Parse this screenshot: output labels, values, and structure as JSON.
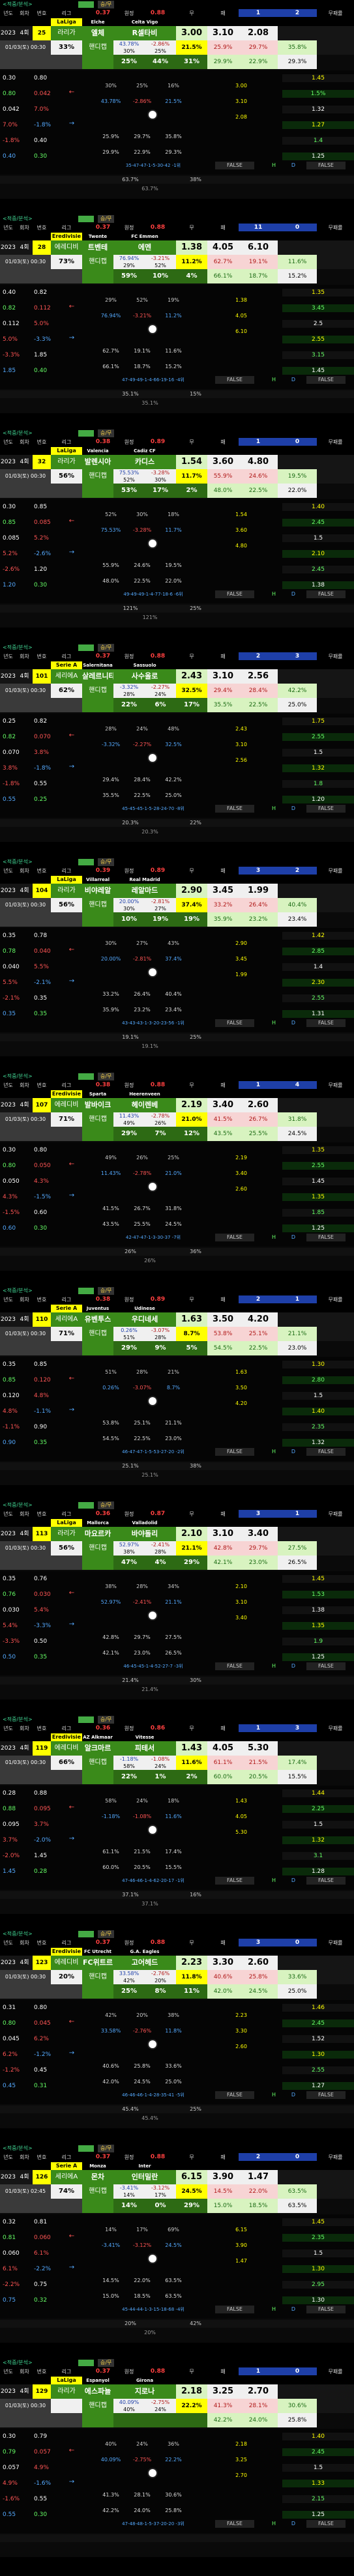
{
  "header_labels": [
    "년도",
    "회차",
    "번호",
    "리그",
    "홈",
    "원정",
    "승패",
    "무",
    "패",
    "승패무",
    "무패차이",
    "무패률"
  ],
  "section_tag": "<적중/분석>",
  "section_btn": "승/무",
  "matches": [
    {
      "top_odds": [
        "0.37",
        "0.88"
      ],
      "top_bar": "1",
      "top_side": "2",
      "league": "LaLiga",
      "home_en": "Elche",
      "away_en": "Celta Vigo",
      "year": "2023",
      "round": "4회",
      "num": "25",
      "kind": "라리가",
      "home": "엘체",
      "away": "R셀타비",
      "o1": "3.00",
      "o2": "3.10",
      "o3": "2.08",
      "date": "01/03(토) 00:30",
      "pct": "33%",
      "type_a": "핸디캡",
      "h_a": "43.78%",
      "h_b": "-2.86%",
      "h_c": "21.5%",
      "p_a": "30%",
      "p_b": "25%",
      "p_c": "16%",
      "r1": "25.9%",
      "r2": "29.7%",
      "r3": "35.8%",
      "r4": "29.9%",
      "r5": "22.9%",
      "r6": "29.3%",
      "win_label": "승무패",
      "w_a": "25%",
      "w_b": "44%",
      "w_c": "31%",
      "left_rows": [
        "0.30",
        "0.80",
        "0.042",
        "7.0%",
        "-1.8%",
        "0.40"
      ],
      "right_rows": [
        "1.45",
        "1.5%",
        "1.32",
        "1.27",
        "1.4",
        "1.25"
      ],
      "foot_text": "35-47-47-1-5-30-42 -1위",
      "false_vals": [
        "FALSE",
        "FALSE"
      ],
      "bottom_pct": [
        "63.7%",
        "38%"
      ],
      "mini_pct": "3"
    },
    {
      "top_odds": [
        "0.37",
        "0.88"
      ],
      "top_bar": "11",
      "top_side": "0",
      "league": "Eredivisie",
      "home_en": "Twente",
      "away_en": "FC Emmen",
      "year": "2023",
      "round": "4회",
      "num": "28",
      "kind": "에레디비",
      "home": "트벤테",
      "away": "에멘",
      "o1": "1.38",
      "o2": "4.05",
      "o3": "6.10",
      "date": "01/03(토) 00:30",
      "pct": "73%",
      "type_a": "핸디캡",
      "h_a": "76.94%",
      "h_b": "-3.21%",
      "h_c": "11.2%",
      "p_a": "29%",
      "p_b": "52%",
      "p_c": "19%",
      "r1": "62.7%",
      "r2": "19.1%",
      "r3": "11.6%",
      "r4": "66.1%",
      "r5": "18.7%",
      "r6": "15.2%",
      "win_label": "승무패",
      "w_a": "59%",
      "w_b": "10%",
      "w_c": "4%",
      "left_rows": [
        "0.40",
        "0.82",
        "0.112",
        "5.0%",
        "-3.3%",
        "1.85"
      ],
      "right_rows": [
        "1.35",
        "3.45",
        "2.5",
        "2.55",
        "3.15",
        "1.45"
      ],
      "foot_text": "47-49-49-1-4-66-19-16 -4위",
      "false_vals": [
        "FALSE",
        "FALSE"
      ],
      "bottom_pct": [
        "35.1%",
        "15%"
      ],
      "mini_pct": "3"
    },
    {
      "top_odds": [
        "0.38",
        "0.89"
      ],
      "top_bar": "1",
      "top_side": "0",
      "league": "LaLiga",
      "home_en": "Valencia",
      "away_en": "Cadiz CF",
      "year": "2023",
      "round": "4회",
      "num": "32",
      "kind": "라리가",
      "home": "발렌시아",
      "away": "카디스",
      "o1": "1.54",
      "o2": "3.60",
      "o3": "4.80",
      "date": "01/03(토) 00:30",
      "pct": "56%",
      "type_a": "핸디캡",
      "h_a": "75.53%",
      "h_b": "-3.28%",
      "h_c": "11.7%",
      "p_a": "52%",
      "p_b": "30%",
      "p_c": "18%",
      "r1": "55.9%",
      "r2": "24.6%",
      "r3": "19.5%",
      "r4": "48.0%",
      "r5": "22.5%",
      "r6": "22.0%",
      "win_label": "승무패",
      "w_a": "53%",
      "w_b": "17%",
      "w_c": "2%",
      "left_rows": [
        "0.30",
        "0.85",
        "0.085",
        "5.2%",
        "-2.6%",
        "1.20"
      ],
      "right_rows": [
        "1.40",
        "2.45",
        "1.5",
        "2.10",
        "2.45",
        "1.38"
      ],
      "foot_text": "49-49-49-1-4-77-18-6 -6위",
      "false_vals": [
        "FALSE",
        "FALSE"
      ],
      "bottom_pct": [
        "121%",
        "25%"
      ],
      "mini_pct": "3"
    },
    {
      "top_odds": [
        "0.37",
        "0.88"
      ],
      "top_bar": "2",
      "top_side": "3",
      "league": "Serie A",
      "home_en": "Salernitana",
      "away_en": "Sassuolo",
      "year": "2023",
      "round": "4회",
      "num": "101",
      "kind": "세리에A",
      "home": "살레르니타",
      "away": "사수올로",
      "o1": "2.43",
      "o2": "3.10",
      "o3": "2.56",
      "date": "01/03(토) 00:30",
      "pct": "62%",
      "type_a": "핸디캡",
      "h_a": "-3.32%",
      "h_b": "-2.27%",
      "h_c": "32.5%",
      "p_a": "28%",
      "p_b": "24%",
      "p_c": "48%",
      "r1": "29.4%",
      "r2": "28.4%",
      "r3": "42.2%",
      "r4": "35.5%",
      "r5": "22.5%",
      "r6": "25.0%",
      "win_label": "승무패",
      "w_a": "22%",
      "w_b": "6%",
      "w_c": "17%",
      "left_rows": [
        "0.25",
        "0.82",
        "0.070",
        "3.8%",
        "-1.8%",
        "0.55"
      ],
      "right_rows": [
        "1.75",
        "2.55",
        "1.5",
        "1.32",
        "1.8",
        "1.20"
      ],
      "foot_text": "45-45-45-1-5-28-24-70 -8위",
      "false_vals": [
        "FALSE",
        "FALSE"
      ],
      "bottom_pct": [
        "20.3%",
        "22%"
      ],
      "mini_pct": "3"
    },
    {
      "top_odds": [
        "0.39",
        "0.89"
      ],
      "top_bar": "3",
      "top_side": "2",
      "league": "LaLiga",
      "home_en": "Villarreal",
      "away_en": "Real Madrid",
      "year": "2023",
      "round": "4회",
      "num": "104",
      "kind": "라리가",
      "home": "비야레알",
      "away": "레알마드",
      "o1": "2.90",
      "o2": "3.45",
      "o3": "1.99",
      "date": "01/03(토) 00:30",
      "pct": "56%",
      "type_a": "핸디캡",
      "h_a": "20.00%",
      "h_b": "-2.81%",
      "h_c": "37.4%",
      "p_a": "30%",
      "p_b": "27%",
      "p_c": "43%",
      "r1": "33.2%",
      "r2": "26.4%",
      "r3": "40.4%",
      "r4": "35.9%",
      "r5": "23.2%",
      "r6": "23.4%",
      "win_label": "승무패",
      "w_a": "10%",
      "w_b": "19%",
      "w_c": "19%",
      "left_rows": [
        "0.35",
        "0.78",
        "0.040",
        "5.5%",
        "-2.1%",
        "0.35"
      ],
      "right_rows": [
        "1.42",
        "2.85",
        "1.4",
        "2.30",
        "2.55",
        "1.31"
      ],
      "foot_text": "43-43-43-1-3-20-23-56 -1위",
      "false_vals": [
        "FALSE",
        "FALSE"
      ],
      "bottom_pct": [
        "19.1%",
        "25%"
      ],
      "mini_pct": "3"
    },
    {
      "top_odds": [
        "0.38",
        "0.88"
      ],
      "top_bar": "1",
      "top_side": "4",
      "league": "Eredivisie",
      "home_en": "Sparta",
      "away_en": "Heerenveen",
      "year": "2023",
      "round": "4회",
      "num": "107",
      "kind": "에레디비",
      "home": "발바이크",
      "away": "헤이렌베",
      "o1": "2.19",
      "o2": "3.40",
      "o3": "2.60",
      "date": "01/03(토) 00:30",
      "pct": "71%",
      "type_a": "핸디캡",
      "h_a": "11.43%",
      "h_b": "-2.78%",
      "h_c": "21.0%",
      "p_a": "49%",
      "p_b": "26%",
      "p_c": "25%",
      "r1": "41.5%",
      "r2": "26.7%",
      "r3": "31.8%",
      "r4": "43.5%",
      "r5": "25.5%",
      "r6": "24.5%",
      "win_label": "승무패",
      "w_a": "29%",
      "w_b": "7%",
      "w_c": "12%",
      "left_rows": [
        "0.30",
        "0.80",
        "0.050",
        "4.3%",
        "-1.5%",
        "0.60"
      ],
      "right_rows": [
        "1.35",
        "2.55",
        "1.45",
        "1.35",
        "1.85",
        "1.25"
      ],
      "foot_text": "42-47-47-1-3-30-37 -7위",
      "false_vals": [
        "FALSE",
        "FALSE"
      ],
      "bottom_pct": [
        "26%",
        "36%"
      ],
      "mini_pct": "3"
    },
    {
      "top_odds": [
        "0.38",
        "0.89"
      ],
      "top_bar": "2",
      "top_side": "1",
      "league": "Serie A",
      "home_en": "Juventus",
      "away_en": "Udinese",
      "year": "2023",
      "round": "4회",
      "num": "110",
      "kind": "세리에A",
      "home": "유벤투스",
      "away": "우디네세",
      "o1": "1.63",
      "o2": "3.50",
      "o3": "4.20",
      "date": "01/03(토) 00:30",
      "pct": "71%",
      "type_a": "핸디캡",
      "h_a": "0.26%",
      "h_b": "-3.07%",
      "h_c": "8.7%",
      "p_a": "51%",
      "p_b": "28%",
      "p_c": "21%",
      "r1": "53.8%",
      "r2": "25.1%",
      "r3": "21.1%",
      "r4": "54.5%",
      "r5": "22.5%",
      "r6": "23.0%",
      "win_label": "승무패",
      "w_a": "29%",
      "w_b": "9%",
      "w_c": "5%",
      "left_rows": [
        "0.35",
        "0.85",
        "0.120",
        "4.8%",
        "-1.1%",
        "0.90"
      ],
      "right_rows": [
        "1.30",
        "2.80",
        "1.5",
        "1.40",
        "2.35",
        "1.32"
      ],
      "foot_text": "46-47-47-1-5-53-27-20 -2위",
      "false_vals": [
        "FALSE",
        "FALSE"
      ],
      "bottom_pct": [
        "25.1%",
        "38%"
      ],
      "mini_pct": "3"
    },
    {
      "top_odds": [
        "0.36",
        "0.87"
      ],
      "top_bar": "3",
      "top_side": "1",
      "league": "LaLiga",
      "home_en": "Mallorca",
      "away_en": "Valladolid",
      "year": "2023",
      "round": "4회",
      "num": "113",
      "kind": "라리가",
      "home": "마요르카",
      "away": "바야돌리",
      "o1": "2.10",
      "o2": "3.10",
      "o3": "3.40",
      "date": "01/03(토) 00:30",
      "pct": "56%",
      "type_a": "핸디캡",
      "h_a": "52.97%",
      "h_b": "-2.41%",
      "h_c": "21.1%",
      "p_a": "38%",
      "p_b": "28%",
      "p_c": "34%",
      "r1": "42.8%",
      "r2": "29.7%",
      "r3": "27.5%",
      "r4": "42.1%",
      "r5": "23.0%",
      "r6": "26.5%",
      "win_label": "승무패",
      "w_a": "47%",
      "w_b": "4%",
      "w_c": "29%",
      "left_rows": [
        "0.35",
        "0.76",
        "0.030",
        "5.4%",
        "-3.3%",
        "0.50"
      ],
      "right_rows": [
        "1.45",
        "1.53",
        "1.38",
        "1.35",
        "1.9",
        "1.25"
      ],
      "foot_text": "46-45-45-1-4-52-27-7 -3위",
      "false_vals": [
        "FALSE",
        "FALSE"
      ],
      "bottom_pct": [
        "21.4%",
        "30%"
      ],
      "mini_pct": "3"
    },
    {
      "top_odds": [
        "0.36",
        "0.86"
      ],
      "top_bar": "1",
      "top_side": "3",
      "league": "Eredivisie",
      "home_en": "AZ Alkmaar",
      "away_en": "Vitesse",
      "year": "2023",
      "round": "4회",
      "num": "119",
      "kind": "에레디비",
      "home": "알크마르",
      "away": "피테서",
      "o1": "1.43",
      "o2": "4.05",
      "o3": "5.30",
      "date": "01/03(토) 00:30",
      "pct": "66%",
      "type_a": "핸디캡",
      "h_a": "-1.18%",
      "h_b": "-1.08%",
      "h_c": "11.6%",
      "p_a": "58%",
      "p_b": "24%",
      "p_c": "18%",
      "r1": "61.1%",
      "r2": "21.5%",
      "r3": "17.4%",
      "r4": "60.0%",
      "r5": "20.5%",
      "r6": "15.5%",
      "win_label": "승무패",
      "w_a": "22%",
      "w_b": "1%",
      "w_c": "2%",
      "left_rows": [
        "0.28",
        "0.88",
        "0.095",
        "3.7%",
        "-2.0%",
        "1.45"
      ],
      "right_rows": [
        "1.44",
        "2.25",
        "1.5",
        "1.32",
        "3.1",
        "1.28"
      ],
      "foot_text": "47-46-46-1-4-62-20-17 -1위",
      "false_vals": [
        "FALSE",
        "FALSE"
      ],
      "bottom_pct": [
        "37.1%",
        "16%"
      ],
      "mini_pct": "3"
    },
    {
      "top_odds": [
        "0.37",
        "0.88"
      ],
      "top_bar": "3",
      "top_side": "0",
      "league": "Eredivisie",
      "home_en": "FC Utrecht",
      "away_en": "G.A. Eagles",
      "year": "2023",
      "round": "4회",
      "num": "123",
      "kind": "에레디비",
      "home": "FC위트르",
      "away": "고어헤드",
      "o1": "2.23",
      "o2": "3.30",
      "o3": "2.60",
      "date": "01/03(토) 00:30",
      "pct": "20%",
      "type_a": "핸디캡",
      "h_a": "33.58%",
      "h_b": "-2.76%",
      "h_c": "11.8%",
      "p_a": "42%",
      "p_b": "20%",
      "p_c": "38%",
      "r1": "40.6%",
      "r2": "25.8%",
      "r3": "33.6%",
      "r4": "42.0%",
      "r5": "24.5%",
      "r6": "25.0%",
      "win_label": "승무패",
      "w_a": "25%",
      "w_b": "8%",
      "w_c": "11%",
      "left_rows": [
        "0.31",
        "0.80",
        "0.045",
        "6.2%",
        "-1.2%",
        "0.45"
      ],
      "right_rows": [
        "1.46",
        "2.45",
        "1.52",
        "1.30",
        "2.55",
        "1.27"
      ],
      "foot_text": "46-46-46-1-4-28-35-41 -5위",
      "false_vals": [
        "FALSE",
        "FALSE"
      ],
      "bottom_pct": [
        "45.4%",
        "25%"
      ],
      "mini_pct": "3"
    },
    {
      "top_odds": [
        "0.37",
        "0.88"
      ],
      "top_bar": "2",
      "top_side": "0",
      "league": "Serie A",
      "home_en": "Monza",
      "away_en": "Inter",
      "year": "2023",
      "round": "4회",
      "num": "126",
      "kind": "세리에A",
      "home": "몬차",
      "away": "인터밀란",
      "o1": "6.15",
      "o2": "3.90",
      "o3": "1.47",
      "date": "01/03(토) 02:45",
      "pct": "74%",
      "type_a": "핸디캡",
      "h_a": "-3.41%",
      "h_b": "-3.12%",
      "h_c": "24.5%",
      "p_a": "14%",
      "p_b": "17%",
      "p_c": "69%",
      "r1": "14.5%",
      "r2": "22.0%",
      "r3": "63.5%",
      "r4": "15.0%",
      "r5": "18.5%",
      "r6": "63.5%",
      "win_label": "승무패",
      "w_a": "14%",
      "w_b": "0%",
      "w_c": "29%",
      "left_rows": [
        "0.32",
        "0.81",
        "0.060",
        "6.1%",
        "-2.2%",
        "0.75"
      ],
      "right_rows": [
        "1.45",
        "2.35",
        "1.5",
        "1.30",
        "2.95",
        "1.30"
      ],
      "foot_text": "45-44-44-1-3-15-18-68 -4위",
      "false_vals": [
        "FALSE",
        "FALSE"
      ],
      "bottom_pct": [
        "20%",
        "42%"
      ],
      "mini_pct": "3"
    },
    {
      "top_odds": [
        "0.37",
        "0.88"
      ],
      "top_bar": "1",
      "top_side": "0",
      "league": "LaLiga",
      "home_en": "Espanyol",
      "away_en": "Girona",
      "year": "2023",
      "round": "4회",
      "num": "129",
      "kind": "라리가",
      "home": "에스파뇰",
      "away": "지로나",
      "o1": "2.18",
      "o2": "3.25",
      "o3": "2.70",
      "date": "01/03(토) 00:30",
      "pct": "",
      "type_a": "핸디캡",
      "h_a": "40.09%",
      "h_b": "-2.75%",
      "h_c": "22.2%",
      "p_a": "40%",
      "p_b": "24%",
      "p_c": "36%",
      "r1": "41.3%",
      "r2": "28.1%",
      "r3": "30.6%",
      "r4": "42.2%",
      "r5": "24.0%",
      "r6": "25.8%",
      "win_label": "승무패",
      "w_a": "",
      "w_b": "",
      "w_c": "",
      "left_rows": [
        "0.30",
        "0.79",
        "0.057",
        "4.9%",
        "-1.6%",
        "0.55"
      ],
      "right_rows": [
        "1.40",
        "2.45",
        "1.5",
        "1.33",
        "2.15",
        "1.25"
      ],
      "foot_text": "47-48-48-1-5-37-20-20 -3위",
      "false_vals": [
        "FALSE",
        "FALSE"
      ],
      "bottom_pct": [
        "",
        ""
      ],
      "mini_pct": "3"
    }
  ]
}
